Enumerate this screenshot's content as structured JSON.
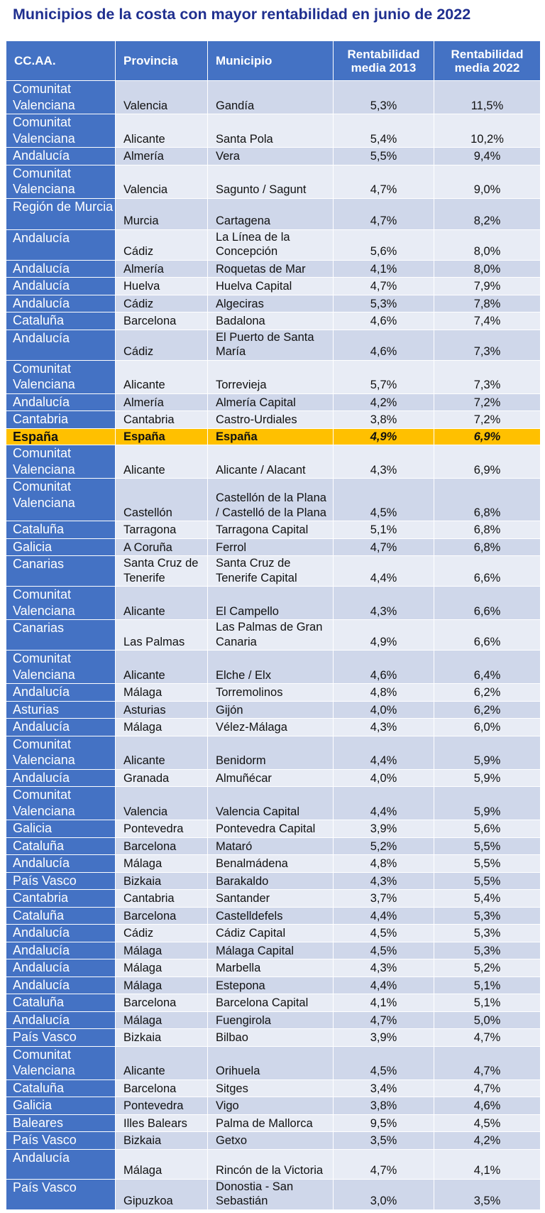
{
  "title": "Municipios de la costa con mayor rentabilidad en junio de 2022",
  "headers": {
    "ccaa": "CC.AA.",
    "provincia": "Provincia",
    "municipio": "Municipio",
    "r2013": "Rentabilidad media 2013",
    "r2022": "Rentabilidad media 2022"
  },
  "colors": {
    "title": "#1f2f8f",
    "header_bg": "#4472c4",
    "row_dark": "#cfd7ea",
    "row_light": "#e8ecf5",
    "highlight": "#ffc000"
  },
  "rows": [
    {
      "ccaa": "Comunitat Valenciana",
      "provincia": "Valencia",
      "municipio": "Gandía",
      "r2013": "5,3%",
      "r2022": "11,5%",
      "h": 44
    },
    {
      "ccaa": "Comunitat Valenciana",
      "provincia": "Alicante",
      "municipio": "Santa Pola",
      "r2013": "5,4%",
      "r2022": "10,2%",
      "h": 44
    },
    {
      "ccaa": "Andalucía",
      "provincia": "Almería",
      "municipio": "Vera",
      "r2013": "5,5%",
      "r2022": "9,4%",
      "h": 22
    },
    {
      "ccaa": "Comunitat Valenciana",
      "provincia": "Valencia",
      "municipio": "Sagunto / Sagunt",
      "r2013": "4,7%",
      "r2022": "9,0%",
      "h": 44
    },
    {
      "ccaa": "Región de Murcia",
      "provincia": "Murcia",
      "municipio": "Cartagena",
      "r2013": "4,7%",
      "r2022": "8,2%",
      "h": 44
    },
    {
      "ccaa": "Andalucía",
      "provincia": "Cádiz",
      "municipio": "La Línea de la Concepción",
      "r2013": "5,6%",
      "r2022": "8,0%",
      "h": 42
    },
    {
      "ccaa": "Andalucía",
      "provincia": "Almería",
      "municipio": "Roquetas de Mar",
      "r2013": "4,1%",
      "r2022": "8,0%",
      "h": 22
    },
    {
      "ccaa": "Andalucía",
      "provincia": "Huelva",
      "municipio": "Huelva Capital",
      "r2013": "4,7%",
      "r2022": "7,9%",
      "h": 22
    },
    {
      "ccaa": "Andalucía",
      "provincia": "Cádiz",
      "municipio": "Algeciras",
      "r2013": "5,3%",
      "r2022": "7,8%",
      "h": 22
    },
    {
      "ccaa": "Cataluña",
      "provincia": "Barcelona",
      "municipio": "Badalona",
      "r2013": "4,6%",
      "r2022": "7,4%",
      "h": 22
    },
    {
      "ccaa": "Andalucía",
      "provincia": "Cádiz",
      "municipio": "El Puerto de Santa María",
      "r2013": "4,6%",
      "r2022": "7,3%",
      "h": 42
    },
    {
      "ccaa": "Comunitat Valenciana",
      "provincia": "Alicante",
      "municipio": "Torrevieja",
      "r2013": "5,7%",
      "r2022": "7,3%",
      "h": 44
    },
    {
      "ccaa": "Andalucía",
      "provincia": "Almería",
      "municipio": "Almería Capital",
      "r2013": "4,2%",
      "r2022": "7,2%",
      "h": 22
    },
    {
      "ccaa": "Cantabria",
      "provincia": "Cantabria",
      "municipio": "Castro-Urdiales",
      "r2013": "3,8%",
      "r2022": "7,2%",
      "h": 22
    },
    {
      "ccaa": "España",
      "provincia": "España",
      "municipio": "España",
      "r2013": "4,9%",
      "r2022": "6,9%",
      "h": 22,
      "highlight": true
    },
    {
      "ccaa": "Comunitat Valenciana",
      "provincia": "Alicante",
      "municipio": "Alicante / Alacant",
      "r2013": "4,3%",
      "r2022": "6,9%",
      "h": 44
    },
    {
      "ccaa": "Comunitat Valenciana",
      "provincia": "Castellón",
      "municipio": "Castellón de la Plana / Castelló de la Plana",
      "r2013": "4,5%",
      "r2022": "6,8%",
      "h": 60
    },
    {
      "ccaa": "Cataluña",
      "provincia": "Tarragona",
      "municipio": "Tarragona Capital",
      "r2013": "5,1%",
      "r2022": "6,8%",
      "h": 22
    },
    {
      "ccaa": "Galicia",
      "provincia": "A Coruña",
      "municipio": "Ferrol",
      "r2013": "4,7%",
      "r2022": "6,8%",
      "h": 22
    },
    {
      "ccaa": "Canarias",
      "provincia": "Santa Cruz de Tenerife",
      "municipio": "Santa Cruz de Tenerife Capital",
      "r2013": "4,4%",
      "r2022": "6,6%",
      "h": 42
    },
    {
      "ccaa": "Comunitat Valenciana",
      "provincia": "Alicante",
      "municipio": "El Campello",
      "r2013": "4,3%",
      "r2022": "6,6%",
      "h": 44
    },
    {
      "ccaa": "Canarias",
      "provincia": "Las Palmas",
      "municipio": "Las Palmas de Gran Canaria",
      "r2013": "4,9%",
      "r2022": "6,6%",
      "h": 42
    },
    {
      "ccaa": "Comunitat Valenciana",
      "provincia": "Alicante",
      "municipio": "Elche / Elx",
      "r2013": "4,6%",
      "r2022": "6,4%",
      "h": 44
    },
    {
      "ccaa": "Andalucía",
      "provincia": "Málaga",
      "municipio": "Torremolinos",
      "r2013": "4,8%",
      "r2022": "6,2%",
      "h": 22
    },
    {
      "ccaa": "Asturias",
      "provincia": "Asturias",
      "municipio": "Gijón",
      "r2013": "4,0%",
      "r2022": "6,2%",
      "h": 22
    },
    {
      "ccaa": "Andalucía",
      "provincia": "Málaga",
      "municipio": "Vélez-Málaga",
      "r2013": "4,3%",
      "r2022": "6,0%",
      "h": 22
    },
    {
      "ccaa": "Comunitat Valenciana",
      "provincia": "Alicante",
      "municipio": "Benidorm",
      "r2013": "4,4%",
      "r2022": "5,9%",
      "h": 44
    },
    {
      "ccaa": "Andalucía",
      "provincia": "Granada",
      "municipio": "Almuñécar",
      "r2013": "4,0%",
      "r2022": "5,9%",
      "h": 22
    },
    {
      "ccaa": "Comunitat Valenciana",
      "provincia": "Valencia",
      "municipio": "Valencia Capital",
      "r2013": "4,4%",
      "r2022": "5,9%",
      "h": 44
    },
    {
      "ccaa": "Galicia",
      "provincia": "Pontevedra",
      "municipio": "Pontevedra Capital",
      "r2013": "3,9%",
      "r2022": "5,6%",
      "h": 22
    },
    {
      "ccaa": "Cataluña",
      "provincia": "Barcelona",
      "municipio": "Mataró",
      "r2013": "5,2%",
      "r2022": "5,5%",
      "h": 22
    },
    {
      "ccaa": "Andalucía",
      "provincia": "Málaga",
      "municipio": "Benalmádena",
      "r2013": "4,8%",
      "r2022": "5,5%",
      "h": 22
    },
    {
      "ccaa": "País Vasco",
      "provincia": "Bizkaia",
      "municipio": "Barakaldo",
      "r2013": "4,3%",
      "r2022": "5,5%",
      "h": 22
    },
    {
      "ccaa": "Cantabria",
      "provincia": "Cantabria",
      "municipio": "Santander",
      "r2013": "3,7%",
      "r2022": "5,4%",
      "h": 22
    },
    {
      "ccaa": "Cataluña",
      "provincia": "Barcelona",
      "municipio": "Castelldefels",
      "r2013": "4,4%",
      "r2022": "5,3%",
      "h": 22
    },
    {
      "ccaa": "Andalucía",
      "provincia": "Cádiz",
      "municipio": "Cádiz Capital",
      "r2013": "4,5%",
      "r2022": "5,3%",
      "h": 22
    },
    {
      "ccaa": "Andalucía",
      "provincia": "Málaga",
      "municipio": "Málaga Capital",
      "r2013": "4,5%",
      "r2022": "5,3%",
      "h": 22
    },
    {
      "ccaa": "Andalucía",
      "provincia": "Málaga",
      "municipio": "Marbella",
      "r2013": "4,3%",
      "r2022": "5,2%",
      "h": 22
    },
    {
      "ccaa": "Andalucía",
      "provincia": "Málaga",
      "municipio": "Estepona",
      "r2013": "4,4%",
      "r2022": "5,1%",
      "h": 22
    },
    {
      "ccaa": "Cataluña",
      "provincia": "Barcelona",
      "municipio": "Barcelona Capital",
      "r2013": "4,1%",
      "r2022": "5,1%",
      "h": 22
    },
    {
      "ccaa": "Andalucía",
      "provincia": "Málaga",
      "municipio": "Fuengirola",
      "r2013": "4,7%",
      "r2022": "5,0%",
      "h": 22
    },
    {
      "ccaa": "País Vasco",
      "provincia": "Bizkaia",
      "municipio": "Bilbao",
      "r2013": "3,9%",
      "r2022": "4,7%",
      "h": 22
    },
    {
      "ccaa": "Comunitat Valenciana",
      "provincia": "Alicante",
      "municipio": "Orihuela",
      "r2013": "4,5%",
      "r2022": "4,7%",
      "h": 44
    },
    {
      "ccaa": "Cataluña",
      "provincia": "Barcelona",
      "municipio": "Sitges",
      "r2013": "3,4%",
      "r2022": "4,7%",
      "h": 22
    },
    {
      "ccaa": "Galicia",
      "provincia": "Pontevedra",
      "municipio": "Vigo",
      "r2013": "3,8%",
      "r2022": "4,6%",
      "h": 22
    },
    {
      "ccaa": "Baleares",
      "provincia": "Illes Balears",
      "municipio": "Palma de Mallorca",
      "r2013": "9,5%",
      "r2022": "4,5%",
      "h": 22
    },
    {
      "ccaa": "País Vasco",
      "provincia": "Bizkaia",
      "municipio": "Getxo",
      "r2013": "3,5%",
      "r2022": "4,2%",
      "h": 22
    },
    {
      "ccaa": "Andalucía",
      "provincia": "Málaga",
      "municipio": "Rincón de la Victoria",
      "r2013": "4,7%",
      "r2022": "4,1%",
      "h": 42
    },
    {
      "ccaa": "País Vasco",
      "provincia": "Gipuzkoa",
      "municipio": "Donostia - San Sebastián",
      "r2013": "3,0%",
      "r2022": "3,5%",
      "h": 42
    }
  ]
}
